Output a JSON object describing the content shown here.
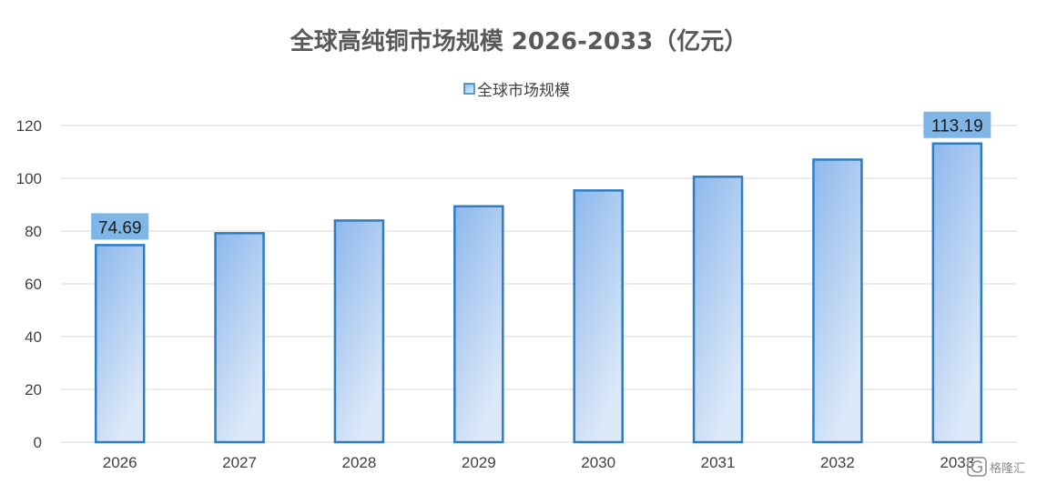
{
  "chart_data": {
    "type": "bar",
    "title": "全球高纯铜市场规模 2026-2033（亿元）",
    "xlabel": "",
    "ylabel": "",
    "categories": [
      "2026",
      "2027",
      "2028",
      "2029",
      "2030",
      "2031",
      "2032",
      "2033"
    ],
    "series": [
      {
        "name": "全球市场规模",
        "values": [
          74.69,
          79.2,
          84.0,
          89.4,
          95.4,
          100.6,
          107.1,
          113.19
        ]
      }
    ],
    "data_labels": [
      {
        "index": 0,
        "text": "74.69"
      },
      {
        "index": 7,
        "text": "113.19"
      }
    ],
    "ylim": [
      0,
      120
    ],
    "yticks": [
      0,
      20,
      40,
      60,
      80,
      100,
      120
    ],
    "grid": true,
    "legend_position": "top-center",
    "colors": {
      "bar_fill_top": "#8db8ec",
      "bar_fill_bottom": "#dde9f9",
      "bar_stroke": "#2e7dc1",
      "label_bg": "#7fb6e6",
      "gridline": "#d9d9d9"
    }
  },
  "watermark": {
    "text": "格隆汇",
    "icon": "glh-logo-icon"
  }
}
